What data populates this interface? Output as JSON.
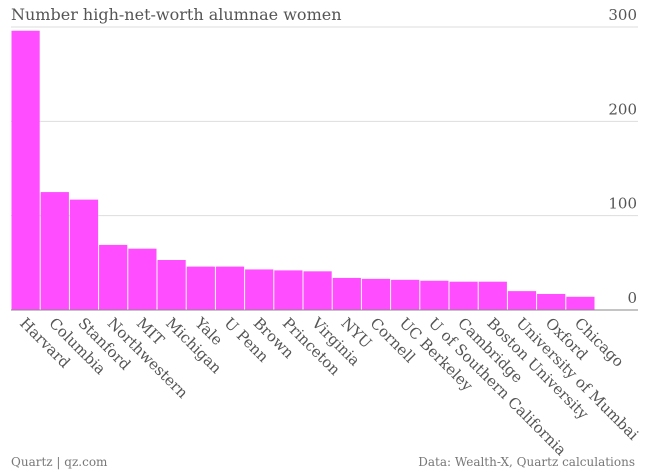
{
  "header": {
    "title": "Number high-net-worth alumnae women"
  },
  "footer": {
    "source_left": "Quartz | qz.com",
    "source_right": "Data: Wealth-X, Quartz calculations"
  },
  "colors": {
    "bar": "#ff4dff",
    "grid": "#dddddd",
    "axis": "#888888"
  },
  "chart_data": {
    "type": "bar",
    "title": "Number high-net-worth alumnae women",
    "categories": [
      "Harvard",
      "Columbia",
      "Stanford",
      "Northwestern",
      "MIT",
      "Michigan",
      "Yale",
      "U Penn",
      "Brown",
      "Princeton",
      "Virginia",
      "NYU",
      "Cornell",
      "UC Berkeley",
      "U of Southern California",
      "Cambridge",
      "Boston University",
      "University of Mumbai",
      "Oxford",
      "Chicago"
    ],
    "values": [
      296,
      125,
      117,
      69,
      65,
      53,
      46,
      46,
      43,
      42,
      41,
      34,
      33,
      32,
      31,
      30,
      30,
      20,
      17,
      14
    ],
    "ylim": [
      0,
      300
    ],
    "yticks": [
      0,
      100,
      200,
      300
    ],
    "grid": true,
    "y_axis_position": "right"
  }
}
